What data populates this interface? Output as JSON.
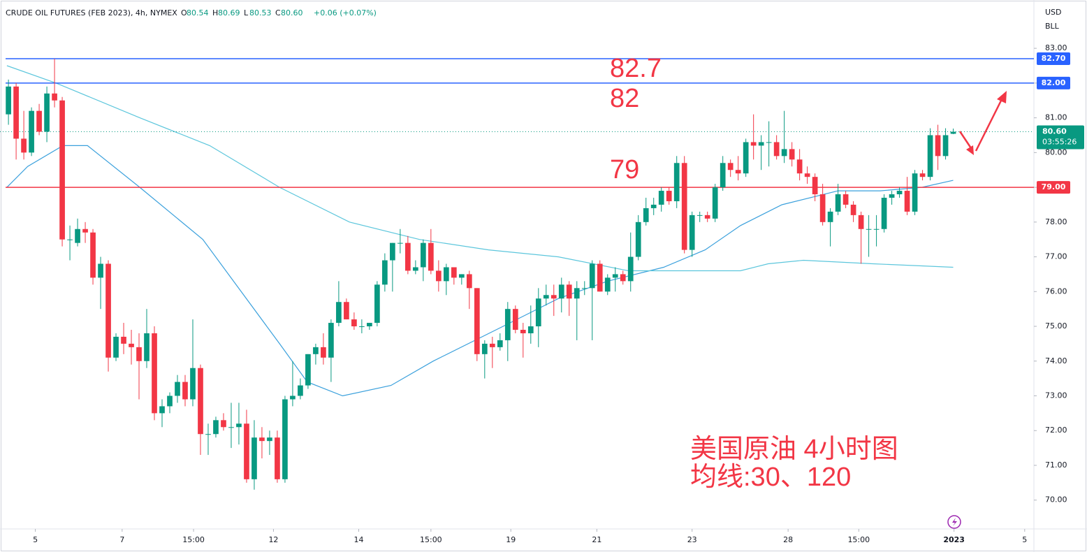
{
  "chart_data": {
    "type": "candlestick",
    "header": {
      "symbol": "CRUDE OIL FUTURES (FEB 2023), 4h, NYMEX",
      "ohlc": [
        {
          "key": "O",
          "value": "80.54"
        },
        {
          "key": "H",
          "value": "80.69"
        },
        {
          "key": "L",
          "value": "80.53"
        },
        {
          "key": "C",
          "value": "80.60"
        }
      ],
      "change": "+0.06 (+0.07%)"
    },
    "currency": "USD",
    "unit": "BLL",
    "up_color": "#089981",
    "down_color": "#f23645",
    "ohlc": [
      [
        81.1,
        82.1,
        80.8,
        81.9
      ],
      [
        81.9,
        82.0,
        79.8,
        80.4
      ],
      [
        80.4,
        81.2,
        79.8,
        80.0
      ],
      [
        80.0,
        81.3,
        79.9,
        81.2
      ],
      [
        81.2,
        81.4,
        80.5,
        80.6
      ],
      [
        80.6,
        81.9,
        80.3,
        81.7
      ],
      [
        81.7,
        82.7,
        81.3,
        81.5
      ],
      [
        81.5,
        81.6,
        77.3,
        77.5
      ],
      [
        77.5,
        77.9,
        76.9,
        77.5
      ],
      [
        77.4,
        78.1,
        77.3,
        77.8
      ],
      [
        77.8,
        78.0,
        77.4,
        77.7
      ],
      [
        77.7,
        77.8,
        76.2,
        76.4
      ],
      [
        76.4,
        77.0,
        75.5,
        76.8
      ],
      [
        76.8,
        76.9,
        73.7,
        74.1
      ],
      [
        74.1,
        74.8,
        74.0,
        74.7
      ],
      [
        74.7,
        75.1,
        74.2,
        74.5
      ],
      [
        74.5,
        74.9,
        73.9,
        74.4
      ],
      [
        74.4,
        74.8,
        72.9,
        74.0
      ],
      [
        74.0,
        75.5,
        73.8,
        74.8
      ],
      [
        74.8,
        75.0,
        72.3,
        72.5
      ],
      [
        72.5,
        72.9,
        72.1,
        72.7
      ],
      [
        72.7,
        73.1,
        72.5,
        73.0
      ],
      [
        73.0,
        73.6,
        72.8,
        73.4
      ],
      [
        73.4,
        73.6,
        72.7,
        72.9
      ],
      [
        72.9,
        75.2,
        72.7,
        73.8
      ],
      [
        73.8,
        73.9,
        71.3,
        71.9
      ],
      [
        71.9,
        72.2,
        71.3,
        71.9
      ],
      [
        71.9,
        72.4,
        71.8,
        72.3
      ],
      [
        72.3,
        72.5,
        72.0,
        72.1
      ],
      [
        72.1,
        72.8,
        71.5,
        72.1
      ],
      [
        72.1,
        72.8,
        71.6,
        72.2
      ],
      [
        72.2,
        72.6,
        70.5,
        70.6
      ],
      [
        70.6,
        72.3,
        70.3,
        71.8
      ],
      [
        71.8,
        72.1,
        71.2,
        71.7
      ],
      [
        71.7,
        72.0,
        71.3,
        71.8
      ],
      [
        71.8,
        72.0,
        70.5,
        70.6
      ],
      [
        70.6,
        73.0,
        70.5,
        72.9
      ],
      [
        72.9,
        74.0,
        72.7,
        73.0
      ],
      [
        73.0,
        73.5,
        72.9,
        73.3
      ],
      [
        73.3,
        74.2,
        73.2,
        74.2
      ],
      [
        74.2,
        74.5,
        73.9,
        74.4
      ],
      [
        74.4,
        74.8,
        73.9,
        74.1
      ],
      [
        74.1,
        75.2,
        73.4,
        75.1
      ],
      [
        75.1,
        76.3,
        75.0,
        75.7
      ],
      [
        75.7,
        75.8,
        75.2,
        75.2
      ],
      [
        75.2,
        75.4,
        74.9,
        75.0
      ],
      [
        75.0,
        75.2,
        74.8,
        75.0
      ],
      [
        75.0,
        75.1,
        74.9,
        75.1
      ],
      [
        75.1,
        76.3,
        75.0,
        76.2
      ],
      [
        76.2,
        77.1,
        76.0,
        76.9
      ],
      [
        76.9,
        77.4,
        76.0,
        77.4
      ],
      [
        77.4,
        77.8,
        77.1,
        77.4
      ],
      [
        77.4,
        77.6,
        76.5,
        76.6
      ],
      [
        76.6,
        76.9,
        76.5,
        76.7
      ],
      [
        76.7,
        77.5,
        76.3,
        77.4
      ],
      [
        77.4,
        77.8,
        76.5,
        76.6
      ],
      [
        76.6,
        76.9,
        76.0,
        76.3
      ],
      [
        76.3,
        76.8,
        75.9,
        76.7
      ],
      [
        76.7,
        76.7,
        76.2,
        76.4
      ],
      [
        76.4,
        76.5,
        76.2,
        76.5
      ],
      [
        76.5,
        76.6,
        75.5,
        76.1
      ],
      [
        76.1,
        76.1,
        74.0,
        74.2
      ],
      [
        74.2,
        74.6,
        73.5,
        74.5
      ],
      [
        74.5,
        74.7,
        73.8,
        74.4
      ],
      [
        74.4,
        74.8,
        74.3,
        74.6
      ],
      [
        74.6,
        75.7,
        74.0,
        75.5
      ],
      [
        75.5,
        75.6,
        74.8,
        74.9
      ],
      [
        74.9,
        75.1,
        74.1,
        74.8
      ],
      [
        74.8,
        75.6,
        74.5,
        75.0
      ],
      [
        75.0,
        76.1,
        74.4,
        75.8
      ],
      [
        75.8,
        76.2,
        75.6,
        75.9
      ],
      [
        75.9,
        76.2,
        75.3,
        75.8
      ],
      [
        75.8,
        76.4,
        75.4,
        76.2
      ],
      [
        76.2,
        76.3,
        75.3,
        75.8
      ],
      [
        75.8,
        76.3,
        74.6,
        76.1
      ],
      [
        76.1,
        76.3,
        75.9,
        76.1
      ],
      [
        76.1,
        76.9,
        74.6,
        76.8
      ],
      [
        76.8,
        76.9,
        76.0,
        76.0
      ],
      [
        76.0,
        76.5,
        75.9,
        76.4
      ],
      [
        76.4,
        76.7,
        76.0,
        76.5
      ],
      [
        76.5,
        76.6,
        76.2,
        76.3
      ],
      [
        76.3,
        77.7,
        76.0,
        77.0
      ],
      [
        77.0,
        78.2,
        76.9,
        78.0
      ],
      [
        78.0,
        78.7,
        77.9,
        78.4
      ],
      [
        78.4,
        78.7,
        78.2,
        78.5
      ],
      [
        78.5,
        79.0,
        78.3,
        78.9
      ],
      [
        78.9,
        79.0,
        78.5,
        78.6
      ],
      [
        78.6,
        79.9,
        78.4,
        79.7
      ],
      [
        79.7,
        79.9,
        77.1,
        77.2
      ],
      [
        77.2,
        78.3,
        77.0,
        78.2
      ],
      [
        78.2,
        78.3,
        78.0,
        78.2
      ],
      [
        78.2,
        78.3,
        78.0,
        78.1
      ],
      [
        78.1,
        79.1,
        78.0,
        79.0
      ],
      [
        79.0,
        79.9,
        78.9,
        79.7
      ],
      [
        79.7,
        79.8,
        79.3,
        79.5
      ],
      [
        79.5,
        79.9,
        79.2,
        79.4
      ],
      [
        79.4,
        80.4,
        79.3,
        80.3
      ],
      [
        80.3,
        81.1,
        79.8,
        80.2
      ],
      [
        80.2,
        80.5,
        79.5,
        80.3
      ],
      [
        80.3,
        80.9,
        79.6,
        80.3
      ],
      [
        80.3,
        80.5,
        79.8,
        79.9
      ],
      [
        79.9,
        81.2,
        79.7,
        80.1
      ],
      [
        80.1,
        80.3,
        79.6,
        79.8
      ],
      [
        79.8,
        80.1,
        79.2,
        79.4
      ],
      [
        79.4,
        79.6,
        79.1,
        79.3
      ],
      [
        79.3,
        79.4,
        78.6,
        78.8
      ],
      [
        78.8,
        79.1,
        77.9,
        78.0
      ],
      [
        78.0,
        78.4,
        77.3,
        78.3
      ],
      [
        78.3,
        79.1,
        78.2,
        78.8
      ],
      [
        78.8,
        78.9,
        78.4,
        78.5
      ],
      [
        78.5,
        78.6,
        78.0,
        78.2
      ],
      [
        78.2,
        78.3,
        76.8,
        77.8
      ],
      [
        77.8,
        78.2,
        77.0,
        77.8
      ],
      [
        77.8,
        78.2,
        77.3,
        77.8
      ],
      [
        77.8,
        78.8,
        77.7,
        78.7
      ],
      [
        78.7,
        78.9,
        78.5,
        78.8
      ],
      [
        78.8,
        79.0,
        78.7,
        78.9
      ],
      [
        78.9,
        79.3,
        78.2,
        78.3
      ],
      [
        78.3,
        79.5,
        78.2,
        79.4
      ],
      [
        79.4,
        79.5,
        79.2,
        79.3
      ],
      [
        79.3,
        80.7,
        79.2,
        80.5
      ],
      [
        80.5,
        80.8,
        79.5,
        79.9
      ],
      [
        79.9,
        80.7,
        79.8,
        80.5
      ],
      [
        80.54,
        80.69,
        80.53,
        80.6
      ]
    ],
    "moving_averages": [
      {
        "color": "#3aa0dc",
        "x": [
          -0.2,
          2.5,
          7.1,
          10.3,
          17.1,
          25.3,
          35.3,
          38.9,
          43.5,
          49.8,
          55.3,
          64.4,
          71.6,
          78,
          85.3,
          90.7,
          95.3,
          100.7,
          108,
          113.5,
          118.9,
          123
        ],
        "values": [
          79.0,
          79.6,
          80.2,
          80.2,
          79.0,
          77.5,
          74.5,
          73.4,
          73.0,
          73.3,
          74.0,
          75.0,
          75.8,
          76.3,
          76.7,
          77.2,
          77.9,
          78.5,
          78.9,
          78.9,
          79.0,
          79.2
        ]
      },
      {
        "color": "#5cc6dc",
        "x": [
          -0.2,
          6.2,
          17.1,
          26.2,
          35.3,
          44.4,
          53.5,
          62.5,
          71.6,
          80.7,
          89.8,
          95.3,
          98.9,
          103.5,
          112.5,
          123
        ],
        "values": [
          82.5,
          82.0,
          81.0,
          80.2,
          79.0,
          78.0,
          77.5,
          77.2,
          77.0,
          76.6,
          76.6,
          76.6,
          76.8,
          76.9,
          76.8,
          76.7
        ]
      }
    ],
    "levels": [
      {
        "value": 82.7,
        "label": "82.70",
        "note": "82.7",
        "color": "#2962ff"
      },
      {
        "value": 82,
        "label": "82.00",
        "note": "82",
        "color": "#2962ff"
      },
      {
        "value": 79,
        "label": "79.00",
        "note": "79",
        "color": "#f23645"
      }
    ],
    "last_price": {
      "value": 80.6,
      "label": "80.60",
      "countdown": "03:55:26",
      "color": "#089981"
    },
    "annotation": [
      "美国原油 4小时图",
      "均线:30、120"
    ],
    "xlim": [
      -1.1,
      133.5
    ],
    "ylim": [
      69.17,
      84.39
    ],
    "xticks": [
      {
        "value": 3.5,
        "label": "5"
      },
      {
        "value": 14.8,
        "label": "7"
      },
      {
        "value": 24.1,
        "label": "15:00"
      },
      {
        "value": 34.5,
        "label": "12"
      },
      {
        "value": 45.6,
        "label": "14"
      },
      {
        "value": 55.0,
        "label": "15:00"
      },
      {
        "value": 65.4,
        "label": "19"
      },
      {
        "value": 76.6,
        "label": "21"
      },
      {
        "value": 89.0,
        "label": "23"
      },
      {
        "value": 101.5,
        "label": "28"
      },
      {
        "value": 110.7,
        "label": "15:00"
      },
      {
        "value": 123.1,
        "label": "2023"
      },
      {
        "value": 132.3,
        "label": "5"
      }
    ],
    "yticks": [
      {
        "value": 70,
        "label": "70.00"
      },
      {
        "value": 71,
        "label": "71.00"
      },
      {
        "value": 72,
        "label": "72.00"
      },
      {
        "value": 73,
        "label": "73.00"
      },
      {
        "value": 74,
        "label": "74.00"
      },
      {
        "value": 75,
        "label": "75.00"
      },
      {
        "value": 76,
        "label": "76.00"
      },
      {
        "value": 77,
        "label": "77.00"
      },
      {
        "value": 78,
        "label": "78.00"
      },
      {
        "value": 79,
        "label": "79.00"
      },
      {
        "value": 80,
        "label": "80.00"
      },
      {
        "value": 81,
        "label": "81.00"
      },
      {
        "value": 82,
        "label": "82.00"
      },
      {
        "value": 83,
        "label": "83.00"
      }
    ],
    "grid": false
  }
}
